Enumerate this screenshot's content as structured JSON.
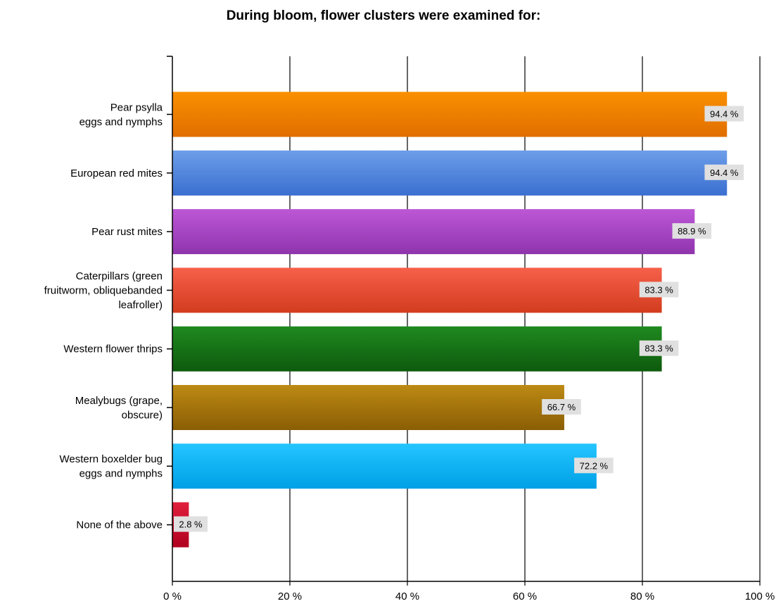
{
  "chart_data": {
    "type": "bar",
    "orientation": "horizontal",
    "title": "During bloom, flower clusters were examined for:",
    "xlabel": "",
    "ylabel": "",
    "xlim": [
      0,
      100
    ],
    "x_ticks": [
      0,
      20,
      40,
      60,
      80,
      100
    ],
    "x_tick_labels": [
      "0 %",
      "20 %",
      "40 %",
      "60 %",
      "80 %",
      "100 %"
    ],
    "grid": "vertical",
    "legend": "none",
    "categories": [
      [
        "Pear psylla",
        "eggs and nymphs"
      ],
      [
        "European red mites"
      ],
      [
        "Pear rust mites"
      ],
      [
        "Caterpillars (green",
        "fruitworm, obliquebanded",
        "leafroller)"
      ],
      [
        "Western flower thrips"
      ],
      [
        "Mealybugs (grape,",
        "obscure)"
      ],
      [
        "Western boxelder bug",
        "eggs and nymphs"
      ],
      [
        "None of the above"
      ]
    ],
    "values": [
      94.4,
      94.4,
      88.9,
      83.3,
      83.3,
      66.7,
      72.2,
      2.8
    ],
    "data_labels": [
      "94.4 %",
      "94.4 %",
      "88.9 %",
      "83.3 %",
      "83.3 %",
      "66.7 %",
      "72.2 %",
      "2.8 %"
    ],
    "colors": [
      [
        "#fa9000",
        "#e06e00"
      ],
      [
        "#6d9ee9",
        "#3a6fd0"
      ],
      [
        "#bd57d6",
        "#8f34ad"
      ],
      [
        "#f7604a",
        "#d23c1e"
      ],
      [
        "#1f8a1f",
        "#0e5a0e"
      ],
      [
        "#bd8a14",
        "#8a5e04"
      ],
      [
        "#24c5ff",
        "#00a0e6"
      ],
      [
        "#e0203c",
        "#b00020"
      ]
    ]
  }
}
